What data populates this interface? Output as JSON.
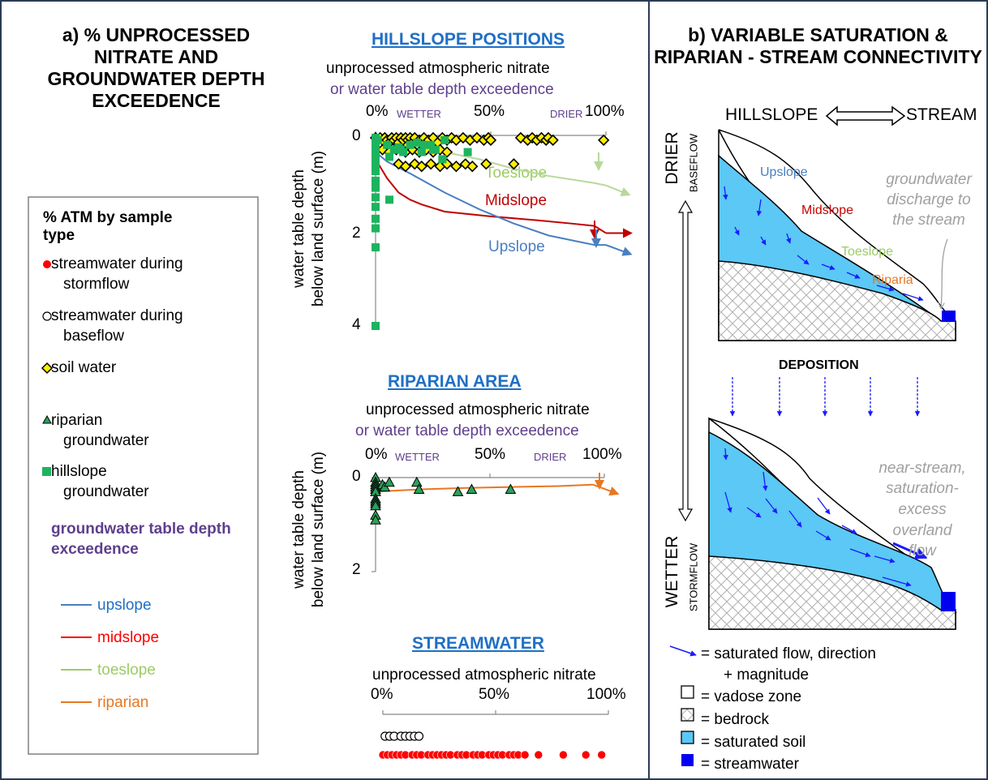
{
  "panel_a": {
    "title": "a) % UNPROCESSED NITRATE AND GROUNDWATER DEPTH EXCEEDENCE",
    "legend": {
      "heading": "% ATM by sample type",
      "items": [
        {
          "label_1": "streamwater during",
          "label_2": "stormflow",
          "marker": "red-dot",
          "color": "#ff0000"
        },
        {
          "label_1": "streamwater during",
          "label_2": "baseflow",
          "marker": "open-circle",
          "color": "#000000"
        },
        {
          "label_1": "soil water",
          "label_2": "",
          "marker": "yellow-diamond",
          "color": "#ffee00"
        },
        {
          "label_1": "riparian",
          "label_2": "groundwater",
          "marker": "green-triangle",
          "color": "#2ca05a"
        },
        {
          "label_1": "hillslope",
          "label_2": "groundwater",
          "marker": "green-square",
          "color": "#1db35f"
        }
      ],
      "gw_heading": "groundwater table depth exceedence",
      "gw_heading_color": "#5e3f8c",
      "lines": [
        {
          "label": "upslope",
          "color": "#4a7fc1"
        },
        {
          "label": "midslope",
          "color": "#ff0000"
        },
        {
          "label": "toeslope",
          "color": "#9ccc65"
        },
        {
          "label": "riparian",
          "color": "#e87722"
        }
      ]
    }
  },
  "charts": {
    "hillslope": {
      "title": "HILLSLOPE POSITIONS",
      "subtitle_1": "unprocessed atmospheric nitrate",
      "subtitle_2": "or water table depth exceedence",
      "tick_0": "0%",
      "tick_50": "50%",
      "tick_100": "100%",
      "wetter": "WETTER",
      "drier": "DRIER",
      "ylabel_1": "water table depth",
      "ylabel_2": "below land surface (m)",
      "yticks": [
        "0",
        "2",
        "4"
      ],
      "curve_labels": {
        "toe": "Toeslope",
        "mid": "Midslope",
        "up": "Upslope"
      }
    },
    "riparian": {
      "title": "RIPARIAN AREA",
      "subtitle_1": "unprocessed atmospheric nitrate",
      "subtitle_2": "or water table depth exceedence",
      "tick_0": "0%",
      "tick_50": "50%",
      "tick_100": "100%",
      "wetter": "WETTER",
      "drier": "DRIER",
      "ylabel_1": "water table depth",
      "ylabel_2": "below land surface (m)",
      "yticks": [
        "0",
        "2"
      ]
    },
    "stream": {
      "title": "STREAMWATER",
      "subtitle": "unprocessed atmospheric nitrate",
      "tick_0": "0%",
      "tick_50": "50%",
      "tick_100": "100%"
    }
  },
  "chart_data": [
    {
      "type": "scatter",
      "title": "HILLSLOPE POSITIONS",
      "xlabel": "unprocessed atmospheric nitrate or water table depth exceedence",
      "ylabel": "water table depth below land surface (m)",
      "xlim": [
        0,
        100
      ],
      "ylim": [
        4,
        0
      ],
      "series": [
        {
          "name": "soil water",
          "x": [
            0,
            1,
            2,
            3,
            4,
            5,
            6,
            7,
            8,
            9,
            10,
            11,
            12,
            13,
            14,
            15,
            16,
            17,
            19,
            21,
            23,
            25,
            27,
            29,
            31,
            33,
            35,
            38,
            41,
            44,
            47,
            49,
            50,
            63,
            66,
            68,
            70,
            72,
            74,
            75,
            77,
            99,
            3,
            6,
            9,
            13,
            16,
            19,
            22,
            25,
            28,
            31,
            10,
            13,
            17,
            20,
            24,
            28,
            31,
            35,
            39,
            42,
            48,
            14,
            60
          ],
          "y": [
            0.05,
            0.1,
            0.05,
            0.1,
            0.05,
            0.1,
            0.15,
            0.05,
            0.1,
            0.05,
            0.15,
            0.05,
            0.1,
            0.05,
            0.1,
            0.05,
            0.15,
            0.05,
            0.1,
            0.05,
            0.1,
            0.05,
            0.15,
            0.05,
            0.1,
            0.05,
            0.1,
            0.05,
            0.1,
            0.05,
            0.1,
            0.05,
            0.1,
            0.05,
            0.1,
            0.05,
            0.1,
            0.05,
            0.1,
            0.05,
            0.1,
            0.1,
            0.3,
            0.35,
            0.3,
            0.35,
            0.3,
            0.35,
            0.3,
            0.35,
            0.3,
            0.35,
            0.6,
            0.65,
            0.6,
            0.65,
            0.6,
            0.65,
            0.6,
            0.65,
            0.6,
            0.65,
            0.6,
            0.2,
            0.6
          ]
        },
        {
          "name": "hillslope groundwater",
          "x": [
            0,
            0,
            0,
            0,
            0,
            0,
            0,
            0,
            0,
            0,
            0,
            0,
            0,
            0,
            0,
            0,
            5,
            8,
            10,
            12,
            15,
            18,
            20,
            24,
            26,
            30,
            40,
            6,
            11,
            21,
            25,
            29,
            1,
            6
          ],
          "y": [
            4.0,
            2.35,
            1.95,
            1.75,
            1.5,
            1.3,
            1.1,
            0.95,
            0.75,
            0.65,
            0.55,
            0.45,
            0.35,
            0.25,
            0.15,
            0.05,
            0.2,
            0.3,
            0.25,
            0.35,
            0.2,
            0.15,
            0.35,
            0.2,
            0.3,
            0.1,
            0.35,
            0.45,
            0.3,
            0.2,
            0.3,
            0.5,
            0.1,
            1.35
          ]
        }
      ],
      "lines": [
        {
          "name": "toeslope",
          "x": [
            0,
            10,
            25,
            45,
            60,
            75,
            95,
            100
          ],
          "y": [
            0.1,
            0.2,
            0.3,
            0.5,
            0.7,
            0.85,
            1.0,
            1.05
          ]
        },
        {
          "name": "midslope",
          "x": [
            0,
            5,
            10,
            15,
            20,
            30,
            50,
            70,
            85,
            95,
            100
          ],
          "y": [
            0.5,
            0.9,
            1.2,
            1.35,
            1.45,
            1.6,
            1.7,
            1.78,
            1.85,
            1.9,
            2.05
          ]
        },
        {
          "name": "upslope",
          "x": [
            0,
            5,
            15,
            30,
            45,
            60,
            75,
            85,
            95,
            100
          ],
          "y": [
            0.35,
            0.55,
            0.8,
            1.2,
            1.55,
            1.85,
            2.1,
            2.2,
            2.3,
            2.3
          ]
        }
      ]
    },
    {
      "type": "scatter",
      "title": "RIPARIAN AREA",
      "xlabel": "unprocessed atmospheric nitrate or water table depth exceedence",
      "ylabel": "water table depth below land surface (m)",
      "xlim": [
        0,
        100
      ],
      "ylim": [
        2,
        0
      ],
      "series": [
        {
          "name": "riparian groundwater",
          "x": [
            0,
            0,
            0,
            0,
            0,
            0,
            0,
            0,
            0,
            0,
            0,
            0,
            3,
            4,
            6,
            18,
            19,
            36,
            42,
            59
          ],
          "y": [
            0.0,
            0.1,
            0.15,
            0.2,
            0.25,
            0.3,
            0.45,
            0.5,
            0.55,
            0.6,
            0.8,
            0.9,
            0.15,
            0.2,
            0.1,
            0.1,
            0.25,
            0.3,
            0.25,
            0.25
          ]
        }
      ],
      "lines": [
        {
          "name": "riparian",
          "x": [
            0,
            20,
            40,
            60,
            80,
            95,
            100
          ],
          "y": [
            0.3,
            0.25,
            0.22,
            0.2,
            0.18,
            0.15,
            0.35
          ]
        }
      ]
    },
    {
      "type": "scatter",
      "title": "STREAMWATER",
      "xlabel": "unprocessed atmospheric nitrate",
      "xlim": [
        0,
        100
      ],
      "series": [
        {
          "name": "streamwater during baseflow",
          "x": [
            1,
            3,
            5,
            8,
            10,
            12,
            14,
            16
          ]
        },
        {
          "name": "streamwater during stormflow",
          "x": [
            0,
            2,
            4,
            6,
            8,
            10,
            13,
            15,
            17,
            20,
            22,
            24,
            26,
            28,
            30,
            33,
            35,
            37,
            40,
            42,
            44,
            47,
            49,
            51,
            53,
            56,
            58,
            60,
            63,
            69,
            80,
            90,
            97
          ]
        }
      ]
    }
  ],
  "panel_b": {
    "title": "b) VARIABLE SATURATION & RIPARIAN - STREAM CONNECTIVITY",
    "hillslope": "HILLSLOPE",
    "stream": "STREAM",
    "drier": "DRIER",
    "baseflow": "BASEFLOW",
    "wetter": "WETTER",
    "stormflow": "STORMFLOW",
    "deposition": "DEPOSITION",
    "labels": {
      "upslope": "Upslope",
      "midslope": "Midslope",
      "toeslope": "Toeslope",
      "riparia": "Riparia"
    },
    "label_colors": {
      "upslope": "#4a7fc1",
      "midslope": "#cc0000",
      "toeslope": "#9ccc65",
      "riparia": "#e87722"
    },
    "gw_note_1": "groundwater",
    "gw_note_2": "discharge to",
    "gw_note_3": "the stream",
    "ns_note_1": "near-stream,",
    "ns_note_2": "saturation-",
    "ns_note_3": "excess",
    "ns_note_4": "overland",
    "ns_note_5": "flow",
    "key": [
      {
        "label": "= saturated flow, direction",
        "label_2": "+ magnitude",
        "symbol": "blue-arrow"
      },
      {
        "label": "= vadose zone",
        "symbol": "white-box"
      },
      {
        "label": "= bedrock",
        "symbol": "hatched-box"
      },
      {
        "label": "= saturated soil",
        "symbol": "light-blue-box"
      },
      {
        "label": "= streamwater",
        "symbol": "blue-box"
      }
    ],
    "colors": {
      "saturated": "#5bc8f5",
      "stream": "#0000ee",
      "arrow": "#1a1aff"
    }
  }
}
